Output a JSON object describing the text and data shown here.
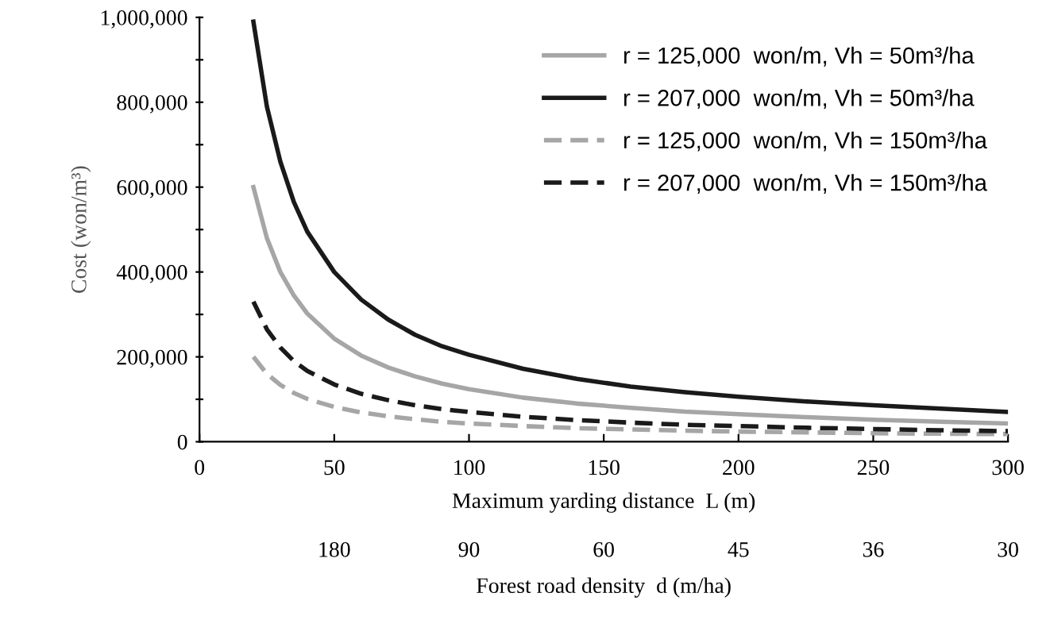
{
  "chart_data": {
    "type": "line",
    "x": [
      20,
      25,
      30,
      35,
      40,
      50,
      60,
      70,
      80,
      90,
      100,
      120,
      140,
      160,
      180,
      200,
      225,
      250,
      275,
      300
    ],
    "series": [
      {
        "name": "r = 125,000  won/m, Vh = 50m³/ha",
        "color": "#a6a6a6",
        "line_style": "solid",
        "values": [
          600000,
          480000,
          400000,
          345000,
          302000,
          243000,
          203000,
          175000,
          154000,
          137000,
          124000,
          104000,
          90000,
          80000,
          71000,
          65000,
          58000,
          52000,
          47000,
          43000
        ]
      },
      {
        "name": "r = 207,000  won/m, Vh = 50m³/ha",
        "color": "#1a1a1a",
        "line_style": "solid",
        "values": [
          990000,
          790000,
          660000,
          565000,
          495000,
          400000,
          335000,
          288000,
          252000,
          225000,
          205000,
          172000,
          148000,
          130000,
          117000,
          106000,
          95000,
          86000,
          78000,
          70000
        ]
      },
      {
        "name": "r = 125,000  won/m, Vh = 150m³/ha",
        "color": "#a6a6a6",
        "line_style": "dashed",
        "values": [
          200000,
          160000,
          134000,
          115000,
          101000,
          82000,
          69000,
          60000,
          53000,
          47000,
          43000,
          37000,
          32000,
          29000,
          26000,
          24000,
          22000,
          20000,
          19000,
          18000
        ]
      },
      {
        "name": "r = 207,000  won/m, Vh = 150m³/ha",
        "color": "#1a1a1a",
        "line_style": "dashed",
        "values": [
          330000,
          265000,
          222000,
          190000,
          167000,
          135000,
          113000,
          98000,
          86000,
          77000,
          70000,
          59000,
          51000,
          45000,
          40000,
          37000,
          33000,
          30000,
          27000,
          25000
        ]
      }
    ],
    "xlabel": "Maximum yarding distance  L (m)",
    "x2label": "Forest road density  d (m/ha)",
    "ylabel": "Cost (won/m³)",
    "xlim": [
      0,
      300
    ],
    "xticks": [
      0,
      50,
      100,
      150,
      200,
      250,
      300
    ],
    "annotations": [
      "180",
      "90",
      "60",
      "45",
      "36",
      "30"
    ],
    "ylim": [
      0,
      1000000
    ],
    "yticks": [
      {
        "value": 0,
        "label": "0"
      },
      {
        "value": 100000,
        "label": null
      },
      {
        "value": 200000,
        "label": "200,000"
      },
      {
        "value": 300000,
        "label": null
      },
      {
        "value": 400000,
        "label": "400,000"
      },
      {
        "value": 500000,
        "label": null
      },
      {
        "value": 600000,
        "label": "600,000"
      },
      {
        "value": 700000,
        "label": null
      },
      {
        "value": 800000,
        "label": "800,000"
      },
      {
        "value": 900000,
        "label": null
      },
      {
        "value": 1000000,
        "label": "1,000,000"
      }
    ],
    "grid": false,
    "legend": "top right",
    "marker": "none"
  }
}
